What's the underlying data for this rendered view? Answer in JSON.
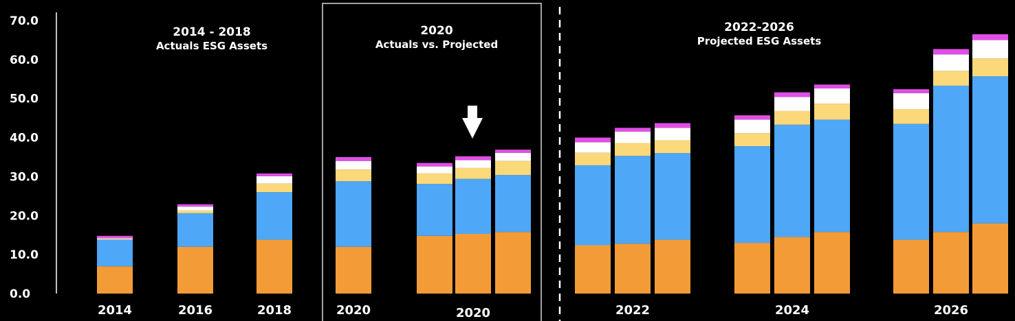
{
  "chart_data": {
    "type": "bar",
    "stacked": true,
    "title": "",
    "xlabel": "",
    "ylabel": "",
    "ylim": [
      0,
      70
    ],
    "y_ticks": [
      "0.0",
      "10.0",
      "20.0",
      "30.0",
      "40.0",
      "50.0",
      "60.0",
      "70.0"
    ],
    "colors": {
      "series_1": "#f39c37",
      "series_2": "#4ea7f7",
      "series_3": "#fbd97a",
      "series_4": "#ffffff",
      "series_5": "#e04fe6",
      "axis": "#ffffff",
      "background": "#000000"
    },
    "bars": [
      {
        "group": "2014",
        "values": [
          7.0,
          6.8,
          0.2,
          0.2,
          0.6
        ]
      },
      {
        "group": "2016",
        "values": [
          12.0,
          8.6,
          0.7,
          1.0,
          0.6
        ]
      },
      {
        "group": "2018",
        "values": [
          13.8,
          12.2,
          2.2,
          1.9,
          0.7
        ]
      },
      {
        "group": "2020",
        "values": [
          12.0,
          16.8,
          3.0,
          2.2,
          1.0
        ]
      },
      {
        "group": "2020 Projected",
        "values": [
          14.8,
          13.3,
          2.7,
          1.8,
          0.9
        ]
      },
      {
        "group": "2020 Projected",
        "values": [
          15.3,
          14.1,
          2.8,
          2.0,
          1.0
        ]
      },
      {
        "group": "2020 Projected",
        "values": [
          15.8,
          14.6,
          3.6,
          2.1,
          0.8
        ]
      },
      {
        "group": "2022",
        "values": [
          12.4,
          20.5,
          3.2,
          2.7,
          1.2
        ]
      },
      {
        "group": "2022",
        "values": [
          12.8,
          22.5,
          3.3,
          2.9,
          1.0
        ]
      },
      {
        "group": "2022",
        "values": [
          13.8,
          22.2,
          3.3,
          3.2,
          1.2
        ]
      },
      {
        "group": "2024",
        "values": [
          13.0,
          24.8,
          3.3,
          3.5,
          1.1
        ]
      },
      {
        "group": "2024",
        "values": [
          14.5,
          28.8,
          3.5,
          3.6,
          1.2
        ]
      },
      {
        "group": "2024",
        "values": [
          15.8,
          28.8,
          4.1,
          3.9,
          1.0
        ]
      },
      {
        "group": "2026",
        "values": [
          13.8,
          29.7,
          3.8,
          4.1,
          1.0
        ]
      },
      {
        "group": "2026",
        "values": [
          15.8,
          37.5,
          3.8,
          4.2,
          1.4
        ]
      },
      {
        "group": "2026",
        "values": [
          18.0,
          37.7,
          4.6,
          4.7,
          1.5
        ]
      }
    ],
    "x_labels": [
      {
        "text": "2014",
        "bar": 0
      },
      {
        "text": "2016",
        "bar": 1
      },
      {
        "text": "2018",
        "bar": 2
      },
      {
        "text": "2020",
        "bar": 3
      },
      {
        "text": "2020",
        "bar": 5
      },
      {
        "text": "2022",
        "bar": 8
      },
      {
        "text": "2024",
        "bar": 11
      },
      {
        "text": "2026",
        "bar": 14
      }
    ],
    "annotations": {
      "actuals_title": "2014 - 2018",
      "actuals_subtitle": "Actuals ESG Assets",
      "compare_title": "2020",
      "compare_subtitle": "Actuals vs. Projected",
      "projected_title": "2022-2026",
      "projected_subtitle": "Projected ESG Assets"
    }
  }
}
